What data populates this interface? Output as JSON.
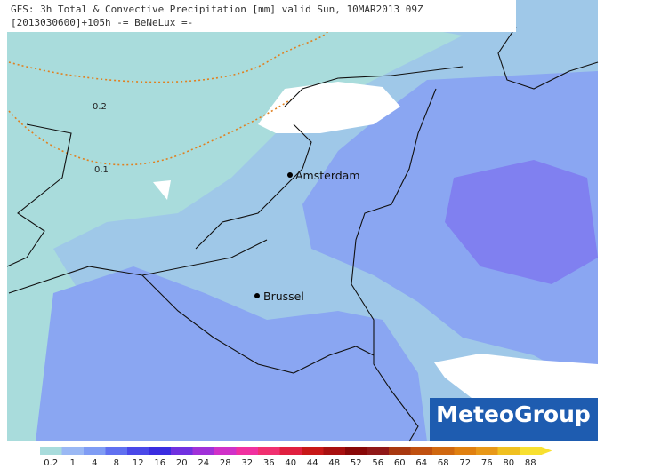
{
  "header": {
    "title": "GFS: 3h Total & Convective Precipitation [mm] valid Sun, 10MAR2013 09Z",
    "subtitle": "[2013030600]+105h -= BeNeLux =-"
  },
  "cities": [
    {
      "name": "Amsterdam"
    },
    {
      "name": "Brussel"
    }
  ],
  "contours": [
    0.2,
    0.1
  ],
  "logo": "MeteoGroup",
  "legend": {
    "ticks": [
      0.2,
      1,
      4,
      8,
      12,
      16,
      20,
      24,
      28,
      32,
      36,
      40,
      44,
      48,
      52,
      56,
      60,
      64,
      68,
      72,
      76,
      80,
      88
    ],
    "colors": [
      "#a8dcdc",
      "#9ab8f4",
      "#7f9cf4",
      "#6070f0",
      "#4a48e8",
      "#3a2ce0",
      "#7030e0",
      "#a030d8",
      "#d030c8",
      "#f030a0",
      "#f03070",
      "#e02040",
      "#c81818",
      "#a81010",
      "#880808",
      "#901818",
      "#a83810",
      "#c05010",
      "#d06810",
      "#e08010",
      "#e89818",
      "#f0c020",
      "#f8e030"
    ]
  }
}
